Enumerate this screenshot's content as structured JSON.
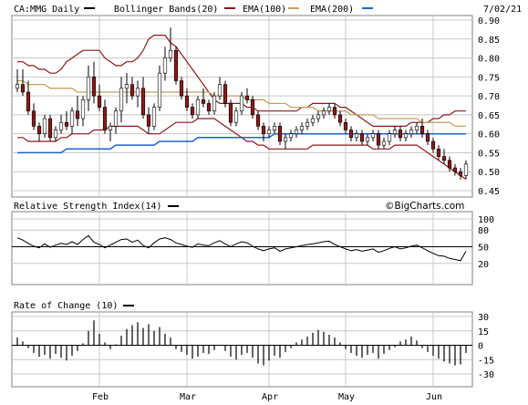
{
  "header": {
    "symbol_label": "CA:MMG Daily",
    "bollinger_label": "Bollinger Bands(20)",
    "ema100_label": "EMA(100)",
    "ema200_label": "EMA(200)",
    "date_label": "7/02/21"
  },
  "watermark": "©BigCharts.com",
  "colors": {
    "up_candle": "#ffffff",
    "down_candle": "#8b1a1a",
    "candle_outline": "#000000",
    "bollinger": "#8b1a1a",
    "ema100": "#c8a060",
    "ema200": "#1e64c8",
    "rsi_line": "#000000",
    "roc_bars": "#000000",
    "grid": "#c8c8c8",
    "frame": "#808080"
  },
  "chart_data": [
    {
      "type": "candlestick",
      "title": "CA:MMG Daily",
      "ylim": [
        0.45,
        0.9
      ],
      "y_ticks": [
        "0.90",
        "0.85",
        "0.80",
        "0.75",
        "0.70",
        "0.65",
        "0.60",
        "0.55",
        "0.50",
        "0.45"
      ],
      "x_ticks": [
        "Feb",
        "Mar",
        "Apr",
        "May",
        "Jun"
      ],
      "series": [
        {
          "name": "CA:MMG Daily",
          "ohlc": [
            [
              0.72,
              0.77,
              0.71,
              0.73
            ],
            [
              0.73,
              0.77,
              0.7,
              0.71
            ],
            [
              0.71,
              0.74,
              0.65,
              0.66
            ],
            [
              0.66,
              0.68,
              0.61,
              0.62
            ],
            [
              0.62,
              0.63,
              0.58,
              0.6
            ],
            [
              0.6,
              0.65,
              0.59,
              0.64
            ],
            [
              0.64,
              0.65,
              0.58,
              0.59
            ],
            [
              0.59,
              0.62,
              0.58,
              0.61
            ],
            [
              0.61,
              0.65,
              0.6,
              0.63
            ],
            [
              0.63,
              0.66,
              0.61,
              0.62
            ],
            [
              0.62,
              0.67,
              0.6,
              0.66
            ],
            [
              0.66,
              0.7,
              0.62,
              0.64
            ],
            [
              0.64,
              0.7,
              0.62,
              0.69
            ],
            [
              0.69,
              0.78,
              0.66,
              0.75
            ],
            [
              0.75,
              0.79,
              0.68,
              0.7
            ],
            [
              0.7,
              0.73,
              0.66,
              0.67
            ],
            [
              0.67,
              0.69,
              0.6,
              0.61
            ],
            [
              0.61,
              0.63,
              0.58,
              0.62
            ],
            [
              0.62,
              0.67,
              0.6,
              0.66
            ],
            [
              0.66,
              0.75,
              0.63,
              0.72
            ],
            [
              0.72,
              0.76,
              0.68,
              0.73
            ],
            [
              0.73,
              0.75,
              0.69,
              0.7
            ],
            [
              0.7,
              0.74,
              0.67,
              0.72
            ],
            [
              0.72,
              0.75,
              0.64,
              0.65
            ],
            [
              0.65,
              0.67,
              0.6,
              0.62
            ],
            [
              0.62,
              0.68,
              0.61,
              0.67
            ],
            [
              0.67,
              0.78,
              0.66,
              0.76
            ],
            [
              0.76,
              0.83,
              0.74,
              0.8
            ],
            [
              0.8,
              0.88,
              0.79,
              0.82
            ],
            [
              0.82,
              0.83,
              0.73,
              0.74
            ],
            [
              0.74,
              0.75,
              0.69,
              0.7
            ],
            [
              0.7,
              0.72,
              0.66,
              0.67
            ],
            [
              0.67,
              0.68,
              0.64,
              0.65
            ],
            [
              0.65,
              0.7,
              0.64,
              0.69
            ],
            [
              0.69,
              0.72,
              0.67,
              0.68
            ],
            [
              0.68,
              0.69,
              0.65,
              0.66
            ],
            [
              0.66,
              0.71,
              0.65,
              0.7
            ],
            [
              0.7,
              0.75,
              0.69,
              0.73
            ],
            [
              0.73,
              0.74,
              0.67,
              0.68
            ],
            [
              0.68,
              0.69,
              0.62,
              0.63
            ],
            [
              0.63,
              0.67,
              0.62,
              0.66
            ],
            [
              0.66,
              0.71,
              0.65,
              0.7
            ],
            [
              0.7,
              0.72,
              0.68,
              0.69
            ],
            [
              0.69,
              0.7,
              0.64,
              0.65
            ],
            [
              0.65,
              0.66,
              0.61,
              0.62
            ],
            [
              0.62,
              0.63,
              0.58,
              0.6
            ],
            [
              0.6,
              0.62,
              0.59,
              0.61
            ],
            [
              0.61,
              0.63,
              0.6,
              0.62
            ],
            [
              0.62,
              0.63,
              0.57,
              0.58
            ],
            [
              0.58,
              0.6,
              0.56,
              0.59
            ],
            [
              0.59,
              0.61,
              0.58,
              0.6
            ],
            [
              0.6,
              0.62,
              0.59,
              0.61
            ],
            [
              0.61,
              0.63,
              0.6,
              0.62
            ],
            [
              0.62,
              0.64,
              0.61,
              0.63
            ],
            [
              0.63,
              0.65,
              0.62,
              0.64
            ],
            [
              0.64,
              0.66,
              0.63,
              0.65
            ],
            [
              0.65,
              0.67,
              0.64,
              0.66
            ],
            [
              0.66,
              0.68,
              0.65,
              0.67
            ],
            [
              0.67,
              0.68,
              0.64,
              0.65
            ],
            [
              0.65,
              0.66,
              0.62,
              0.63
            ],
            [
              0.63,
              0.64,
              0.6,
              0.61
            ],
            [
              0.61,
              0.62,
              0.58,
              0.59
            ],
            [
              0.59,
              0.61,
              0.58,
              0.6
            ],
            [
              0.6,
              0.61,
              0.57,
              0.58
            ],
            [
              0.58,
              0.6,
              0.57,
              0.59
            ],
            [
              0.59,
              0.61,
              0.58,
              0.6
            ],
            [
              0.6,
              0.61,
              0.56,
              0.57
            ],
            [
              0.57,
              0.59,
              0.56,
              0.58
            ],
            [
              0.58,
              0.61,
              0.57,
              0.6
            ],
            [
              0.6,
              0.62,
              0.59,
              0.61
            ],
            [
              0.61,
              0.62,
              0.58,
              0.59
            ],
            [
              0.59,
              0.61,
              0.58,
              0.6
            ],
            [
              0.6,
              0.62,
              0.59,
              0.61
            ],
            [
              0.61,
              0.63,
              0.6,
              0.62
            ],
            [
              0.62,
              0.64,
              0.59,
              0.6
            ],
            [
              0.6,
              0.61,
              0.57,
              0.58
            ],
            [
              0.58,
              0.59,
              0.55,
              0.56
            ],
            [
              0.56,
              0.57,
              0.53,
              0.54
            ],
            [
              0.54,
              0.56,
              0.52,
              0.53
            ],
            [
              0.53,
              0.54,
              0.5,
              0.51
            ],
            [
              0.51,
              0.52,
              0.49,
              0.5
            ],
            [
              0.5,
              0.51,
              0.48,
              0.49
            ],
            [
              0.49,
              0.53,
              0.48,
              0.52
            ]
          ]
        },
        {
          "name": "Bollinger Bands(20)",
          "upper": [
            0.79,
            0.79,
            0.78,
            0.78,
            0.77,
            0.77,
            0.76,
            0.76,
            0.77,
            0.79,
            0.8,
            0.81,
            0.82,
            0.82,
            0.82,
            0.82,
            0.8,
            0.79,
            0.78,
            0.78,
            0.79,
            0.79,
            0.8,
            0.82,
            0.85,
            0.86,
            0.86,
            0.86,
            0.84,
            0.83,
            0.81,
            0.79,
            0.77,
            0.75,
            0.73,
            0.71,
            0.69,
            0.68,
            0.68,
            0.68,
            0.68,
            0.68,
            0.67,
            0.67,
            0.66,
            0.66,
            0.66,
            0.66,
            0.66,
            0.66,
            0.66,
            0.66,
            0.67,
            0.67,
            0.68,
            0.68,
            0.68,
            0.68,
            0.68,
            0.67,
            0.67,
            0.66,
            0.65,
            0.64,
            0.63,
            0.62,
            0.62,
            0.62,
            0.62,
            0.62,
            0.62,
            0.62,
            0.63,
            0.63,
            0.63,
            0.63,
            0.64,
            0.64,
            0.65,
            0.65,
            0.66,
            0.66,
            0.66
          ],
          "lower": [
            0.59,
            0.59,
            0.58,
            0.58,
            0.58,
            0.58,
            0.58,
            0.58,
            0.59,
            0.59,
            0.6,
            0.6,
            0.6,
            0.6,
            0.61,
            0.61,
            0.61,
            0.62,
            0.62,
            0.62,
            0.62,
            0.62,
            0.62,
            0.61,
            0.6,
            0.6,
            0.6,
            0.61,
            0.62,
            0.63,
            0.63,
            0.63,
            0.63,
            0.64,
            0.64,
            0.64,
            0.64,
            0.63,
            0.62,
            0.61,
            0.6,
            0.59,
            0.58,
            0.58,
            0.57,
            0.57,
            0.56,
            0.56,
            0.56,
            0.56,
            0.56,
            0.56,
            0.56,
            0.56,
            0.57,
            0.57,
            0.57,
            0.57,
            0.57,
            0.57,
            0.57,
            0.57,
            0.57,
            0.57,
            0.57,
            0.56,
            0.56,
            0.56,
            0.56,
            0.57,
            0.57,
            0.57,
            0.57,
            0.57,
            0.56,
            0.55,
            0.54,
            0.53,
            0.52,
            0.51,
            0.5,
            0.49,
            0.48
          ]
        },
        {
          "name": "EMA(100)",
          "values": [
            0.74,
            0.74,
            0.73,
            0.73,
            0.73,
            0.73,
            0.72,
            0.72,
            0.72,
            0.72,
            0.72,
            0.71,
            0.71,
            0.71,
            0.71,
            0.71,
            0.71,
            0.71,
            0.71,
            0.71,
            0.71,
            0.71,
            0.71,
            0.71,
            0.71,
            0.71,
            0.71,
            0.71,
            0.71,
            0.71,
            0.71,
            0.71,
            0.71,
            0.71,
            0.71,
            0.71,
            0.7,
            0.7,
            0.7,
            0.7,
            0.7,
            0.7,
            0.69,
            0.69,
            0.69,
            0.69,
            0.68,
            0.68,
            0.68,
            0.68,
            0.67,
            0.67,
            0.67,
            0.67,
            0.67,
            0.66,
            0.66,
            0.66,
            0.66,
            0.66,
            0.66,
            0.65,
            0.65,
            0.65,
            0.65,
            0.65,
            0.64,
            0.64,
            0.64,
            0.64,
            0.64,
            0.64,
            0.64,
            0.64,
            0.63,
            0.63,
            0.63,
            0.63,
            0.63,
            0.63,
            0.62,
            0.62,
            0.62
          ]
        },
        {
          "name": "EMA(200)",
          "values": [
            0.55,
            0.55,
            0.55,
            0.55,
            0.55,
            0.55,
            0.55,
            0.55,
            0.55,
            0.56,
            0.56,
            0.56,
            0.56,
            0.56,
            0.56,
            0.56,
            0.56,
            0.56,
            0.57,
            0.57,
            0.57,
            0.57,
            0.57,
            0.57,
            0.57,
            0.57,
            0.58,
            0.58,
            0.58,
            0.58,
            0.58,
            0.58,
            0.58,
            0.59,
            0.59,
            0.59,
            0.59,
            0.59,
            0.59,
            0.59,
            0.59,
            0.59,
            0.59,
            0.59,
            0.59,
            0.59,
            0.59,
            0.6,
            0.6,
            0.6,
            0.6,
            0.6,
            0.6,
            0.6,
            0.6,
            0.6,
            0.6,
            0.6,
            0.6,
            0.6,
            0.6,
            0.6,
            0.6,
            0.6,
            0.6,
            0.6,
            0.6,
            0.6,
            0.6,
            0.6,
            0.6,
            0.6,
            0.6,
            0.6,
            0.6,
            0.6,
            0.6,
            0.6,
            0.6,
            0.6,
            0.6,
            0.6,
            0.6
          ]
        }
      ]
    },
    {
      "type": "line",
      "title": "Relative Strength Index(14)",
      "ylim": [
        0,
        100
      ],
      "y_ticks": [
        "100",
        "80",
        "50",
        "20"
      ],
      "reference_line": 50,
      "values": [
        66,
        62,
        56,
        51,
        48,
        55,
        49,
        53,
        56,
        54,
        59,
        54,
        63,
        70,
        58,
        54,
        48,
        53,
        58,
        63,
        64,
        58,
        62,
        52,
        48,
        57,
        64,
        66,
        63,
        57,
        54,
        51,
        49,
        55,
        53,
        52,
        57,
        61,
        55,
        50,
        55,
        59,
        57,
        51,
        46,
        43,
        46,
        48,
        42,
        46,
        48,
        50,
        52,
        54,
        55,
        57,
        59,
        60,
        54,
        50,
        46,
        43,
        45,
        42,
        44,
        46,
        40,
        43,
        47,
        50,
        46,
        48,
        51,
        53,
        48,
        43,
        38,
        34,
        33,
        29,
        27,
        25,
        42
      ]
    },
    {
      "type": "bar",
      "title": "Rate of Change (10)",
      "ylim": [
        -30,
        30
      ],
      "y_ticks": [
        "30",
        "15",
        "0",
        "-15",
        "-30"
      ],
      "values": [
        8,
        4,
        -3,
        -8,
        -12,
        -10,
        -14,
        -9,
        -13,
        -16,
        -11,
        -6,
        2,
        15,
        26,
        12,
        3,
        -4,
        1,
        10,
        17,
        21,
        24,
        18,
        22,
        15,
        19,
        12,
        8,
        -4,
        -7,
        -10,
        -14,
        -12,
        -8,
        -9,
        -5,
        0,
        -6,
        -12,
        -15,
        -10,
        -8,
        -13,
        -19,
        -21,
        -16,
        -11,
        -13,
        -7,
        -3,
        3,
        6,
        9,
        13,
        16,
        14,
        11,
        8,
        3,
        -4,
        -8,
        -11,
        -13,
        -10,
        -8,
        -14,
        -9,
        -5,
        -2,
        4,
        6,
        9,
        5,
        -3,
        -7,
        -11,
        -14,
        -17,
        -19,
        -21,
        -20,
        -8
      ]
    }
  ]
}
